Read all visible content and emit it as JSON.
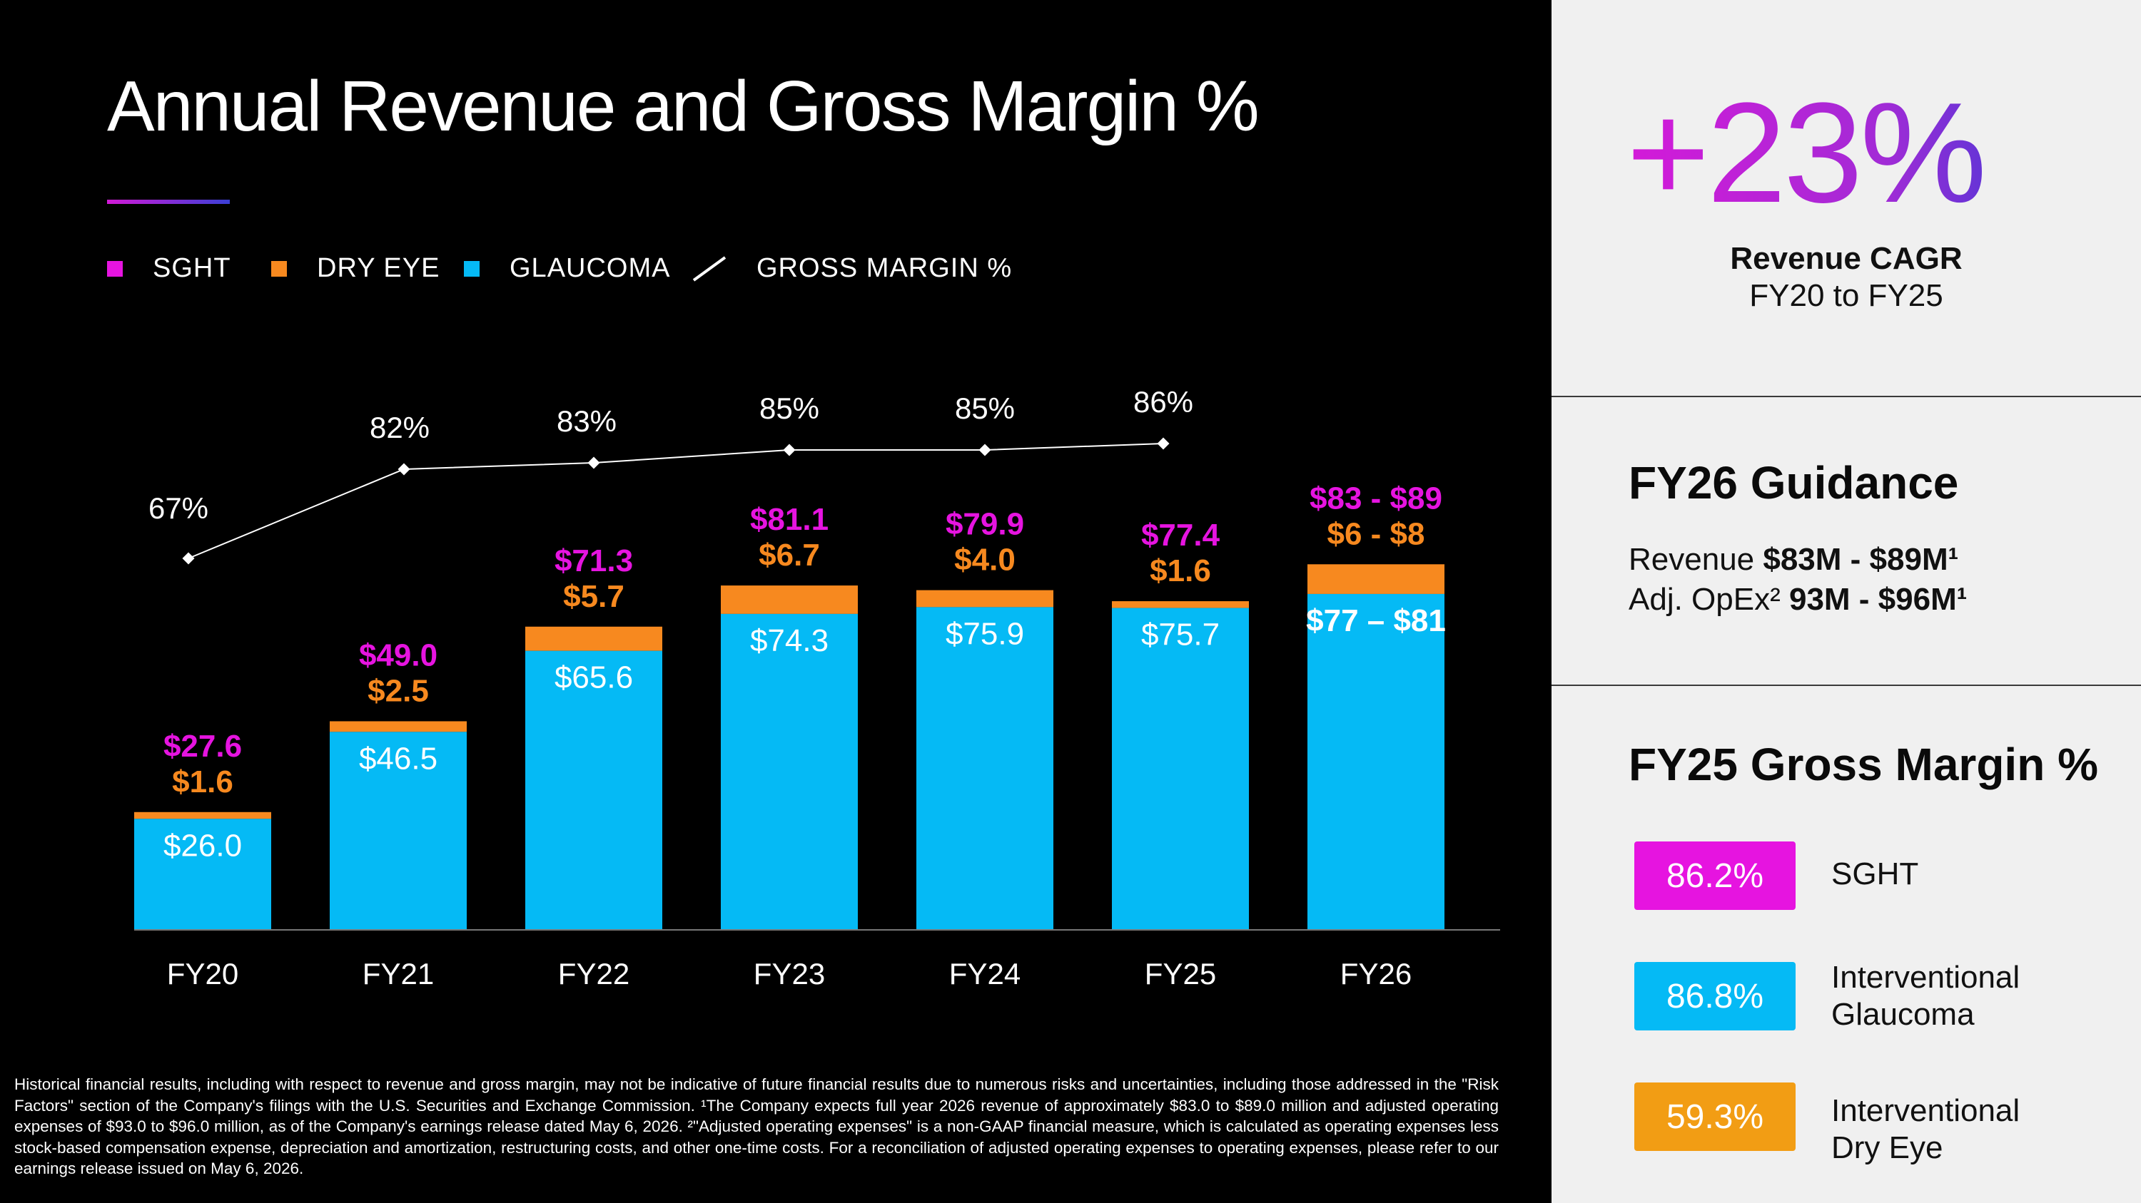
{
  "title": "Annual Revenue and Gross Margin %",
  "legend": [
    {
      "label": "SGHT",
      "color": "#e614e0",
      "kind": "square"
    },
    {
      "label": "DRY EYE",
      "color": "#f7891f",
      "kind": "square"
    },
    {
      "label": "GLAUCOMA",
      "color": "#05baf5",
      "kind": "square"
    },
    {
      "label": "GROSS MARGIN %",
      "color": "#ffffff",
      "kind": "line"
    }
  ],
  "chart_data": {
    "type": "bar",
    "stacked": true,
    "categories": [
      "FY20",
      "FY21",
      "FY22",
      "FY23",
      "FY24",
      "FY25",
      "FY26"
    ],
    "ylim": [
      0,
      100
    ],
    "series": [
      {
        "name": "GLAUCOMA",
        "color": "#05baf5",
        "values": [
          26.0,
          46.5,
          65.6,
          74.3,
          75.9,
          75.7,
          79
        ],
        "labels": [
          "$26.0",
          "$46.5",
          "$65.6",
          "$74.3",
          "$75.9",
          "$75.7",
          "$77 – $81"
        ]
      },
      {
        "name": "DRY EYE",
        "color": "#f7891f",
        "values": [
          1.6,
          2.5,
          5.7,
          6.7,
          4.0,
          1.6,
          7
        ],
        "labels": [
          "$1.6",
          "$2.5",
          "$5.7",
          "$6.7",
          "$4.0",
          "$1.6",
          "$6 - $8"
        ]
      },
      {
        "name": "GROSS MARGIN %",
        "type": "line",
        "values": [
          67,
          82,
          83,
          85,
          85,
          86,
          null
        ],
        "labels": [
          "67%",
          "82%",
          "83%",
          "85%",
          "85%",
          "86%",
          ""
        ]
      }
    ],
    "totals": [
      27.6,
      49.0,
      71.3,
      81.1,
      79.9,
      77.4,
      86
    ],
    "total_labels": [
      "$27.6",
      "$49.0",
      "$71.3",
      "$81.1",
      "$79.9",
      "$77.4",
      "$83 - $89"
    ],
    "total_color": "#e614e0",
    "grid": false,
    "xlabel": "",
    "ylabel": ""
  },
  "footnote": "Historical financial results, including with respect to revenue and gross margin, may not be indicative of future financial results due to numerous risks and uncertainties, including those addressed in the \"Risk Factors\" section of the Company's filings with the U.S. Securities and Exchange Commission. ¹The Company expects full year 2026 revenue of approximately $83.0 to $89.0 million and adjusted operating expenses of $93.0 to $96.0 million, as of the Company's earnings release dated May 6, 2026. ²\"Adjusted operating expenses\" is a non-GAAP financial measure, which is calculated as operating expenses less stock-based compensation expense, depreciation and amortization, restructuring costs, and other one-time costs. For a reconciliation of adjusted operating expenses to operating expenses, please refer to our earnings release issued on May 6, 2026.",
  "cagr": {
    "value": "+23%",
    "label_line1": "Revenue CAGR",
    "label_line2": "FY20 to FY25"
  },
  "guidance": {
    "title": "FY26 Guidance",
    "revenue_label": "Revenue ",
    "revenue_value": "$83M - $89M¹",
    "opex_label": "Adj. OpEx² ",
    "opex_value": "93M - $96M¹"
  },
  "gross_margin": {
    "title": "FY25 Gross Margin %",
    "items": [
      {
        "value": "86.2%",
        "label_line1": "SGHT",
        "label_line2": "",
        "color": "#e614e0"
      },
      {
        "value": "86.8%",
        "label_line1": "Interventional",
        "label_line2": "Glaucoma",
        "color": "#05baf5"
      },
      {
        "value": "59.3%",
        "label_line1": "Interventional",
        "label_line2": "Dry Eye",
        "color": "#f29d14"
      }
    ]
  }
}
